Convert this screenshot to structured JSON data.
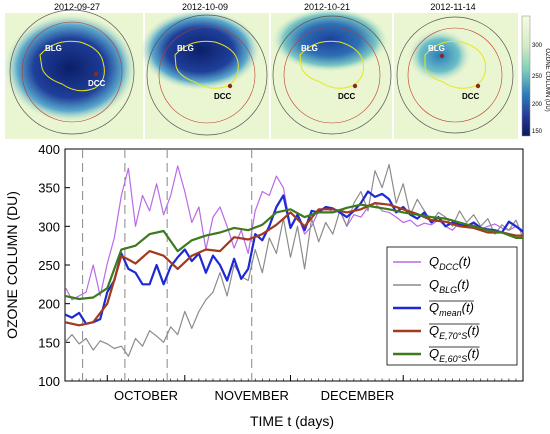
{
  "maps": {
    "panels": [
      {
        "date": "2012-09-27",
        "sites": [
          "BLG",
          "DCC"
        ]
      },
      {
        "date": "2012-10-09",
        "sites": [
          "BLG",
          "DCC"
        ]
      },
      {
        "date": "2012-10-21",
        "sites": [
          "BLG",
          "DCC"
        ]
      },
      {
        "date": "2012-11-14",
        "sites": [
          "BLG",
          "DCC"
        ]
      }
    ],
    "colorbar": {
      "title": "OZONE COLUMN (DU)",
      "ticks": [
        300,
        250,
        200,
        150
      ],
      "colors": [
        "#f7fbe0",
        "#d2ecc5",
        "#7fcdbb",
        "#2c7fb8",
        "#253494",
        "#081d58"
      ]
    }
  },
  "chart_data": {
    "type": "line",
    "xlabel": "TIME t (days)",
    "ylabel": "OZONE COLUMN (DU)",
    "yticks": [
      "100",
      "150",
      "200",
      "250",
      "300",
      "350",
      "400"
    ],
    "xlim": [
      0,
      130
    ],
    "ylim": [
      100,
      400
    ],
    "month_labels": [
      {
        "label": "OCTOBER",
        "x": 23
      },
      {
        "label": "NOVEMBER",
        "x": 53
      },
      {
        "label": "DECEMBER",
        "x": 83
      }
    ],
    "month_boundaries": [
      12,
      34,
      64,
      96
    ],
    "snapshot_days": [
      5,
      17,
      29,
      53
    ],
    "legend": {
      "entries": [
        {
          "main": "Q",
          "sub": "DCC",
          "suffix": "(t)",
          "overline": false,
          "color": "#b96ae6"
        },
        {
          "main": "Q",
          "sub": "BLG",
          "suffix": "(t)",
          "overline": false,
          "color": "#8c8c8c"
        },
        {
          "main": "Q",
          "sub": "mean",
          "suffix": "(t)",
          "overline": true,
          "color": "#1d29d6"
        },
        {
          "main": "Q",
          "sub": "E,70°S",
          "suffix": "(t)",
          "overline": true,
          "color": "#a23a1e"
        },
        {
          "main": "Q",
          "sub": "E,60°S",
          "suffix": "(t)",
          "overline": true,
          "color": "#3d7a1d"
        }
      ]
    },
    "series": [
      {
        "id": "dcc",
        "color": "#b96ae6",
        "width": 1.2,
        "x": [
          0,
          2,
          4,
          6,
          8,
          10,
          12,
          14,
          16,
          18,
          20,
          22,
          24,
          26,
          28,
          30,
          32,
          34,
          36,
          38,
          40,
          42,
          44,
          46,
          48,
          50,
          52,
          54,
          56,
          58,
          60,
          62,
          64,
          66,
          68,
          70,
          72,
          74,
          76,
          78,
          80,
          82,
          84,
          86,
          88,
          90,
          92,
          94,
          96,
          98,
          100,
          102,
          104,
          106,
          108,
          110,
          112,
          114,
          116,
          118,
          120,
          122,
          124,
          126,
          128,
          130
        ],
        "values": [
          222,
          205,
          210,
          215,
          250,
          210,
          252,
          285,
          340,
          375,
          300,
          340,
          320,
          355,
          315,
          340,
          378,
          345,
          305,
          325,
          270,
          312,
          325,
          300,
          272,
          295,
          265,
          320,
          345,
          340,
          365,
          350,
          300,
          315,
          290,
          300,
          320,
          325,
          318,
          322,
          300,
          315,
          312,
          325,
          330,
          320,
          318,
          312,
          305,
          308,
          300,
          304,
          302,
          308,
          300,
          295,
          305,
          300,
          302,
          296,
          300,
          303,
          298,
          295,
          300,
          295
        ]
      },
      {
        "id": "blg",
        "color": "#8c8c8c",
        "width": 1.2,
        "x": [
          0,
          2,
          4,
          6,
          8,
          10,
          12,
          14,
          16,
          18,
          20,
          22,
          24,
          26,
          28,
          30,
          32,
          34,
          36,
          38,
          40,
          42,
          44,
          46,
          48,
          50,
          52,
          54,
          56,
          58,
          60,
          62,
          64,
          66,
          68,
          70,
          72,
          74,
          76,
          78,
          80,
          82,
          84,
          86,
          88,
          90,
          92,
          94,
          96,
          98,
          100,
          102,
          104,
          106,
          108,
          110,
          112,
          114,
          116,
          118,
          120,
          122,
          124,
          126,
          128,
          130
        ],
        "values": [
          150,
          160,
          148,
          155,
          140,
          152,
          148,
          142,
          145,
          132,
          155,
          145,
          165,
          158,
          150,
          170,
          160,
          190,
          168,
          190,
          205,
          215,
          240,
          210,
          250,
          235,
          230,
          270,
          240,
          285,
          265,
          310,
          260,
          300,
          245,
          310,
          280,
          305,
          290,
          320,
          300,
          330,
          345,
          320,
          372,
          350,
          380,
          330,
          355,
          315,
          335,
          320,
          305,
          318,
          312,
          300,
          320,
          305,
          315,
          300,
          310,
          290,
          302,
          295,
          308,
          285
        ]
      },
      {
        "id": "mean",
        "color": "#1d29d6",
        "width": 2.2,
        "x": [
          0,
          2,
          4,
          6,
          8,
          10,
          12,
          14,
          16,
          18,
          20,
          22,
          24,
          26,
          28,
          30,
          32,
          34,
          36,
          38,
          40,
          42,
          44,
          46,
          48,
          50,
          52,
          54,
          56,
          58,
          60,
          62,
          64,
          66,
          68,
          70,
          72,
          74,
          76,
          78,
          80,
          82,
          84,
          86,
          88,
          90,
          92,
          94,
          96,
          98,
          100,
          102,
          104,
          106,
          108,
          110,
          112,
          114,
          116,
          118,
          120,
          122,
          124,
          126,
          128,
          130
        ],
        "values": [
          186,
          182,
          188,
          174,
          176,
          180,
          215,
          230,
          265,
          245,
          240,
          225,
          225,
          250,
          225,
          248,
          260,
          270,
          255,
          265,
          240,
          262,
          250,
          230,
          258,
          232,
          245,
          290,
          282,
          300,
          325,
          340,
          298,
          315,
          295,
          320,
          318,
          325,
          323,
          318,
          312,
          320,
          330,
          345,
          338,
          342,
          335,
          318,
          325,
          315,
          310,
          318,
          305,
          312,
          300,
          305,
          302,
          300,
          305,
          298,
          296,
          295,
          292,
          306,
          300,
          293
        ]
      },
      {
        "id": "e70",
        "color": "#a23a1e",
        "width": 2.2,
        "x": [
          0,
          4,
          8,
          12,
          16,
          20,
          24,
          28,
          32,
          36,
          40,
          44,
          48,
          52,
          56,
          60,
          64,
          68,
          72,
          76,
          80,
          84,
          88,
          92,
          96,
          100,
          104,
          108,
          112,
          116,
          120,
          124,
          128,
          130
        ],
        "values": [
          176,
          172,
          176,
          200,
          262,
          252,
          268,
          262,
          245,
          262,
          270,
          268,
          286,
          283,
          290,
          302,
          318,
          300,
          322,
          322,
          318,
          322,
          330,
          328,
          322,
          316,
          308,
          306,
          300,
          298,
          292,
          292,
          288,
          288
        ]
      },
      {
        "id": "e60",
        "color": "#3d7a1d",
        "width": 2.2,
        "x": [
          0,
          4,
          8,
          12,
          16,
          20,
          24,
          28,
          32,
          36,
          40,
          44,
          48,
          52,
          56,
          60,
          64,
          68,
          72,
          76,
          80,
          84,
          88,
          92,
          96,
          100,
          104,
          108,
          112,
          116,
          120,
          124,
          128,
          130
        ],
        "values": [
          210,
          206,
          208,
          220,
          270,
          275,
          290,
          294,
          268,
          282,
          288,
          292,
          298,
          295,
          302,
          318,
          322,
          312,
          318,
          318,
          324,
          328,
          325,
          322,
          318,
          315,
          312,
          310,
          305,
          300,
          295,
          292,
          285,
          285
        ]
      }
    ]
  }
}
